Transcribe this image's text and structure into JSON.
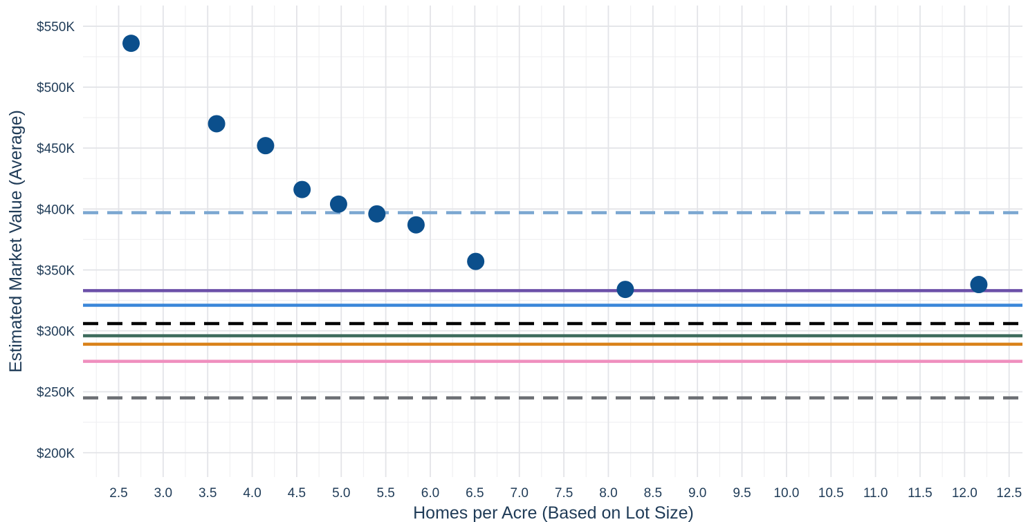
{
  "chart_data": {
    "type": "scatter",
    "title": "",
    "xlabel": "Homes per Acre (Based on Lot Size)",
    "ylabel": "Estimated Market Value (Average)",
    "xlim": [
      2.1,
      12.65
    ],
    "ylim": [
      180000,
      567000
    ],
    "x_ticks": [
      2.5,
      3.0,
      3.5,
      4.0,
      4.5,
      5.0,
      5.5,
      6.0,
      6.5,
      7.0,
      7.5,
      8.0,
      8.5,
      9.0,
      9.5,
      10.0,
      10.5,
      11.0,
      11.5,
      12.0,
      12.5
    ],
    "x_tick_labels": [
      "2.5",
      "3.0",
      "3.5",
      "4.0",
      "4.5",
      "5.0",
      "5.5",
      "6.0",
      "6.5",
      "7.0",
      "7.5",
      "8.0",
      "8.5",
      "9.0",
      "9.5",
      "10.0",
      "10.5",
      "11.0",
      "11.5",
      "12.0",
      "12.5"
    ],
    "y_ticks": [
      200000,
      250000,
      300000,
      350000,
      400000,
      450000,
      500000,
      550000
    ],
    "y_tick_labels": [
      "$200K",
      "$250K",
      "$300K",
      "$350K",
      "$400K",
      "$450K",
      "$500K",
      "$550K"
    ],
    "grid": true,
    "legend": "none",
    "point_color": "#0b4f8c",
    "points": [
      {
        "x": 2.64,
        "y": 536000
      },
      {
        "x": 3.6,
        "y": 470000
      },
      {
        "x": 4.15,
        "y": 452000
      },
      {
        "x": 4.56,
        "y": 416000
      },
      {
        "x": 4.97,
        "y": 404000
      },
      {
        "x": 5.4,
        "y": 396000
      },
      {
        "x": 5.84,
        "y": 387000
      },
      {
        "x": 6.51,
        "y": 357000
      },
      {
        "x": 8.19,
        "y": 334000
      },
      {
        "x": 12.16,
        "y": 338000
      }
    ],
    "reference_lines": [
      {
        "y": 397000,
        "color": "#7ba7d1",
        "style": "dashed"
      },
      {
        "y": 333000,
        "color": "#6b4fa8",
        "style": "solid"
      },
      {
        "y": 321000,
        "color": "#3a86d9",
        "style": "solid"
      },
      {
        "y": 306000,
        "color": "#000000",
        "style": "dashed"
      },
      {
        "y": 296000,
        "color": "#3d6b5c",
        "style": "solid"
      },
      {
        "y": 289000,
        "color": "#d9821a",
        "style": "solid"
      },
      {
        "y": 275000,
        "color": "#ef8fbe",
        "style": "solid"
      },
      {
        "y": 245000,
        "color": "#6b6e73",
        "style": "dashed"
      }
    ]
  }
}
